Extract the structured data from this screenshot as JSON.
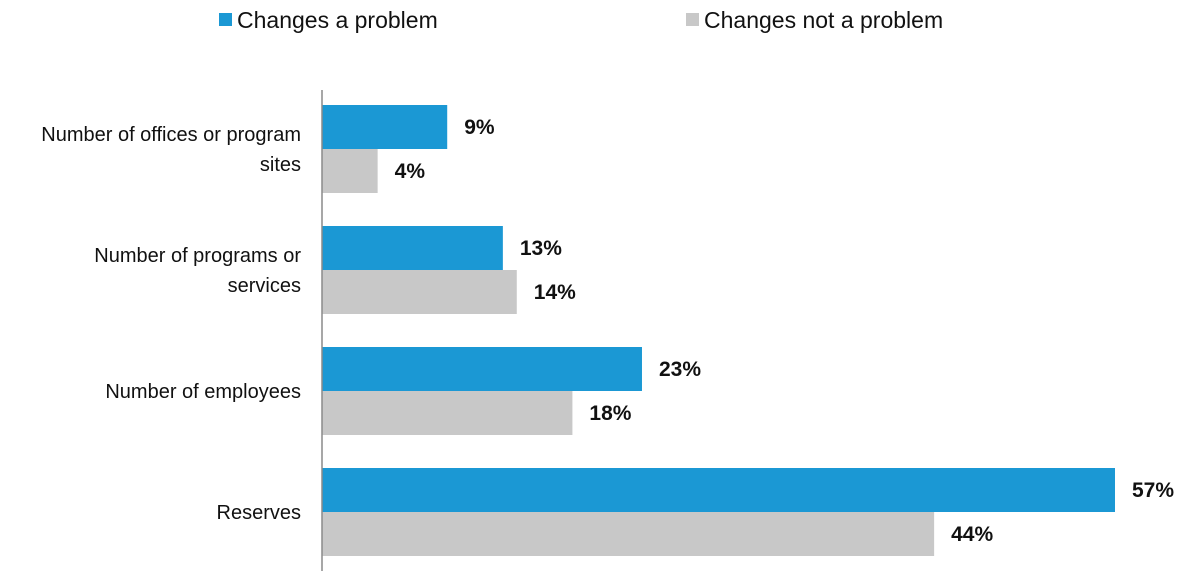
{
  "chart_data": {
    "type": "bar",
    "orientation": "horizontal",
    "categories": [
      [
        "Number of offices or program",
        "sites"
      ],
      [
        "Number of programs or",
        "services"
      ],
      [
        "Number of employees"
      ],
      [
        "Reserves"
      ]
    ],
    "series": [
      {
        "name": "Changes a problem",
        "color": "#1b98d4",
        "values": [
          9,
          13,
          23,
          57
        ],
        "labels": [
          "9%",
          "13%",
          "23%",
          "57%"
        ]
      },
      {
        "name": "Changes not a problem",
        "color": "#c8c8c8",
        "values": [
          4,
          14,
          18,
          44
        ],
        "labels": [
          "4%",
          "14%",
          "18%",
          "44%"
        ]
      }
    ],
    "xlim": [
      0,
      57
    ],
    "grid": false,
    "legend_position": "top"
  }
}
